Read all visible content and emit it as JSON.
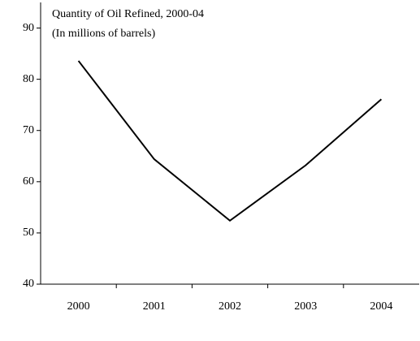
{
  "chart_data": {
    "type": "line",
    "title": "Quantity of Oil Refined, 2000-04",
    "subtitle": "(In millions of barrels)",
    "categories": [
      "2000",
      "2001",
      "2002",
      "2003",
      "2004"
    ],
    "values": [
      83.6,
      64.4,
      52.4,
      63.2,
      76.1
    ],
    "color": "#000000",
    "ylim": [
      40,
      95
    ],
    "yticks": [
      40,
      50,
      60,
      70,
      80,
      90
    ],
    "grid": false
  }
}
